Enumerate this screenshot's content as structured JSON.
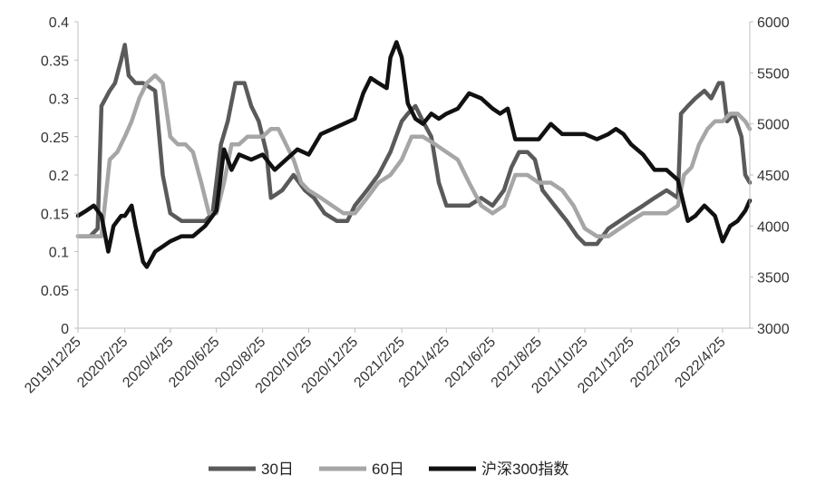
{
  "chart_data": {
    "type": "line",
    "y_left": {
      "ylim": [
        0,
        0.4
      ],
      "ticks": [
        "0",
        "0.05",
        "0.1",
        "0.15",
        "0.2",
        "0.25",
        "0.3",
        "0.35",
        "0.4"
      ]
    },
    "y_right": {
      "ylim": [
        3000,
        6000
      ],
      "ticks": [
        "3000",
        "3500",
        "4000",
        "4500",
        "5000",
        "5500",
        "6000"
      ]
    },
    "x_ticks": [
      "2019/12/25",
      "2020/2/25",
      "2020/4/25",
      "2020/6/25",
      "2020/8/25",
      "2020/10/25",
      "2020/12/25",
      "2021/2/25",
      "2021/4/25",
      "2021/6/25",
      "2021/8/25",
      "2021/10/25",
      "2021/12/25",
      "2022/2/25",
      "2022/4/25"
    ],
    "x_range": [
      "2019/12/25",
      "2022/5/31"
    ],
    "grid": false,
    "legend_position": "bottom",
    "series": [
      {
        "name": "30日",
        "axis": "left",
        "color": "#5a5a5a",
        "points": [
          [
            "2019/12/25",
            0.12
          ],
          [
            "2020/1/10",
            0.12
          ],
          [
            "2020/1/20",
            0.13
          ],
          [
            "2020/1/25",
            0.29
          ],
          [
            "2020/2/5",
            0.31
          ],
          [
            "2020/2/12",
            0.32
          ],
          [
            "2020/2/20",
            0.35
          ],
          [
            "2020/2/25",
            0.37
          ],
          [
            "2020/3/1",
            0.33
          ],
          [
            "2020/3/10",
            0.32
          ],
          [
            "2020/3/20",
            0.32
          ],
          [
            "2020/4/5",
            0.31
          ],
          [
            "2020/4/15",
            0.2
          ],
          [
            "2020/4/25",
            0.15
          ],
          [
            "2020/5/10",
            0.14
          ],
          [
            "2020/5/25",
            0.14
          ],
          [
            "2020/6/10",
            0.14
          ],
          [
            "2020/6/20",
            0.15
          ],
          [
            "2020/7/1",
            0.24
          ],
          [
            "2020/7/10",
            0.27
          ],
          [
            "2020/7/20",
            0.32
          ],
          [
            "2020/8/1",
            0.32
          ],
          [
            "2020/8/10",
            0.29
          ],
          [
            "2020/8/20",
            0.27
          ],
          [
            "2020/8/30",
            0.23
          ],
          [
            "2020/9/5",
            0.17
          ],
          [
            "2020/9/20",
            0.18
          ],
          [
            "2020/10/5",
            0.2
          ],
          [
            "2020/10/20",
            0.18
          ],
          [
            "2020/11/1",
            0.17
          ],
          [
            "2020/11/15",
            0.15
          ],
          [
            "2020/12/1",
            0.14
          ],
          [
            "2020/12/15",
            0.14
          ],
          [
            "2020/12/25",
            0.16
          ],
          [
            "2021/1/10",
            0.18
          ],
          [
            "2021/1/25",
            0.2
          ],
          [
            "2021/2/10",
            0.23
          ],
          [
            "2021/2/25",
            0.27
          ],
          [
            "2021/3/5",
            0.28
          ],
          [
            "2021/3/15",
            0.29
          ],
          [
            "2021/3/25",
            0.27
          ],
          [
            "2021/4/5",
            0.25
          ],
          [
            "2021/4/15",
            0.19
          ],
          [
            "2021/4/25",
            0.16
          ],
          [
            "2021/5/10",
            0.16
          ],
          [
            "2021/5/25",
            0.16
          ],
          [
            "2021/6/10",
            0.17
          ],
          [
            "2021/6/25",
            0.16
          ],
          [
            "2021/7/10",
            0.18
          ],
          [
            "2021/7/20",
            0.21
          ],
          [
            "2021/7/30",
            0.23
          ],
          [
            "2021/8/10",
            0.23
          ],
          [
            "2021/8/20",
            0.22
          ],
          [
            "2021/8/30",
            0.18
          ],
          [
            "2021/9/15",
            0.16
          ],
          [
            "2021/10/1",
            0.14
          ],
          [
            "2021/10/15",
            0.12
          ],
          [
            "2021/10/25",
            0.11
          ],
          [
            "2021/11/10",
            0.11
          ],
          [
            "2021/11/25",
            0.13
          ],
          [
            "2021/12/10",
            0.14
          ],
          [
            "2021/12/25",
            0.15
          ],
          [
            "2022/1/10",
            0.16
          ],
          [
            "2022/1/25",
            0.17
          ],
          [
            "2022/2/10",
            0.18
          ],
          [
            "2022/2/25",
            0.17
          ],
          [
            "2022/3/1",
            0.28
          ],
          [
            "2022/3/10",
            0.29
          ],
          [
            "2022/3/20",
            0.3
          ],
          [
            "2022/4/1",
            0.31
          ],
          [
            "2022/4/10",
            0.3
          ],
          [
            "2022/4/20",
            0.32
          ],
          [
            "2022/4/25",
            0.32
          ],
          [
            "2022/5/1",
            0.27
          ],
          [
            "2022/5/10",
            0.28
          ],
          [
            "2022/5/20",
            0.25
          ],
          [
            "2022/5/25",
            0.2
          ],
          [
            "2022/5/31",
            0.19
          ]
        ]
      },
      {
        "name": "60日",
        "axis": "left",
        "color": "#a6a6a6",
        "points": [
          [
            "2019/12/25",
            0.12
          ],
          [
            "2020/1/10",
            0.12
          ],
          [
            "2020/1/25",
            0.12
          ],
          [
            "2020/2/5",
            0.22
          ],
          [
            "2020/2/15",
            0.23
          ],
          [
            "2020/2/25",
            0.25
          ],
          [
            "2020/3/5",
            0.27
          ],
          [
            "2020/3/15",
            0.3
          ],
          [
            "2020/3/25",
            0.32
          ],
          [
            "2020/4/5",
            0.33
          ],
          [
            "2020/4/15",
            0.32
          ],
          [
            "2020/4/25",
            0.25
          ],
          [
            "2020/5/5",
            0.24
          ],
          [
            "2020/5/15",
            0.24
          ],
          [
            "2020/5/25",
            0.23
          ],
          [
            "2020/6/5",
            0.19
          ],
          [
            "2020/6/15",
            0.15
          ],
          [
            "2020/6/25",
            0.15
          ],
          [
            "2020/7/5",
            0.19
          ],
          [
            "2020/7/15",
            0.24
          ],
          [
            "2020/7/25",
            0.24
          ],
          [
            "2020/8/5",
            0.25
          ],
          [
            "2020/8/25",
            0.25
          ],
          [
            "2020/9/5",
            0.26
          ],
          [
            "2020/9/15",
            0.26
          ],
          [
            "2020/9/25",
            0.24
          ],
          [
            "2020/10/5",
            0.22
          ],
          [
            "2020/10/15",
            0.19
          ],
          [
            "2020/10/25",
            0.18
          ],
          [
            "2020/11/10",
            0.17
          ],
          [
            "2020/11/25",
            0.16
          ],
          [
            "2020/12/10",
            0.15
          ],
          [
            "2020/12/25",
            0.15
          ],
          [
            "2021/1/10",
            0.17
          ],
          [
            "2021/1/25",
            0.19
          ],
          [
            "2021/2/10",
            0.2
          ],
          [
            "2021/2/25",
            0.22
          ],
          [
            "2021/3/10",
            0.25
          ],
          [
            "2021/3/25",
            0.25
          ],
          [
            "2021/4/10",
            0.24
          ],
          [
            "2021/4/25",
            0.23
          ],
          [
            "2021/5/10",
            0.22
          ],
          [
            "2021/5/25",
            0.19
          ],
          [
            "2021/6/10",
            0.16
          ],
          [
            "2021/6/25",
            0.15
          ],
          [
            "2021/7/10",
            0.16
          ],
          [
            "2021/7/25",
            0.2
          ],
          [
            "2021/8/10",
            0.2
          ],
          [
            "2021/8/25",
            0.19
          ],
          [
            "2021/9/10",
            0.19
          ],
          [
            "2021/9/25",
            0.18
          ],
          [
            "2021/10/10",
            0.16
          ],
          [
            "2021/10/25",
            0.13
          ],
          [
            "2021/11/10",
            0.12
          ],
          [
            "2021/11/25",
            0.12
          ],
          [
            "2021/12/10",
            0.13
          ],
          [
            "2021/12/25",
            0.14
          ],
          [
            "2022/1/10",
            0.15
          ],
          [
            "2022/1/25",
            0.15
          ],
          [
            "2022/2/10",
            0.15
          ],
          [
            "2022/2/25",
            0.16
          ],
          [
            "2022/3/5",
            0.2
          ],
          [
            "2022/3/15",
            0.21
          ],
          [
            "2022/3/25",
            0.24
          ],
          [
            "2022/4/5",
            0.26
          ],
          [
            "2022/4/15",
            0.27
          ],
          [
            "2022/4/25",
            0.27
          ],
          [
            "2022/5/5",
            0.28
          ],
          [
            "2022/5/15",
            0.28
          ],
          [
            "2022/5/25",
            0.27
          ],
          [
            "2022/5/31",
            0.26
          ]
        ]
      },
      {
        "name": "沪深300指数",
        "axis": "right",
        "color": "#111111",
        "points": [
          [
            "2019/12/25",
            4100
          ],
          [
            "2020/1/5",
            4150
          ],
          [
            "2020/1/15",
            4200
          ],
          [
            "2020/1/25",
            4100
          ],
          [
            "2020/2/3",
            3750
          ],
          [
            "2020/2/10",
            4000
          ],
          [
            "2020/2/20",
            4100
          ],
          [
            "2020/2/25",
            4100
          ],
          [
            "2020/3/5",
            4200
          ],
          [
            "2020/3/10",
            4000
          ],
          [
            "2020/3/20",
            3650
          ],
          [
            "2020/3/25",
            3600
          ],
          [
            "2020/4/5",
            3750
          ],
          [
            "2020/4/15",
            3800
          ],
          [
            "2020/4/25",
            3850
          ],
          [
            "2020/5/10",
            3900
          ],
          [
            "2020/5/25",
            3900
          ],
          [
            "2020/6/10",
            4000
          ],
          [
            "2020/6/25",
            4150
          ],
          [
            "2020/7/5",
            4750
          ],
          [
            "2020/7/15",
            4550
          ],
          [
            "2020/7/25",
            4700
          ],
          [
            "2020/8/10",
            4650
          ],
          [
            "2020/8/25",
            4700
          ],
          [
            "2020/9/10",
            4550
          ],
          [
            "2020/9/25",
            4650
          ],
          [
            "2020/10/10",
            4750
          ],
          [
            "2020/10/25",
            4700
          ],
          [
            "2020/11/10",
            4900
          ],
          [
            "2020/11/25",
            4950
          ],
          [
            "2020/12/10",
            5000
          ],
          [
            "2020/12/25",
            5050
          ],
          [
            "2021/1/5",
            5300
          ],
          [
            "2021/1/15",
            5450
          ],
          [
            "2021/1/25",
            5400
          ],
          [
            "2021/2/5",
            5350
          ],
          [
            "2021/2/10",
            5650
          ],
          [
            "2021/2/18",
            5800
          ],
          [
            "2021/2/25",
            5650
          ],
          [
            "2021/3/5",
            5200
          ],
          [
            "2021/3/15",
            5050
          ],
          [
            "2021/3/25",
            5000
          ],
          [
            "2021/4/5",
            5100
          ],
          [
            "2021/4/15",
            5050
          ],
          [
            "2021/4/25",
            5100
          ],
          [
            "2021/5/10",
            5150
          ],
          [
            "2021/5/25",
            5300
          ],
          [
            "2021/6/10",
            5250
          ],
          [
            "2021/6/25",
            5150
          ],
          [
            "2021/7/5",
            5100
          ],
          [
            "2021/7/15",
            5150
          ],
          [
            "2021/7/25",
            4850
          ],
          [
            "2021/8/10",
            4850
          ],
          [
            "2021/8/25",
            4850
          ],
          [
            "2021/9/10",
            5000
          ],
          [
            "2021/9/25",
            4900
          ],
          [
            "2021/10/10",
            4900
          ],
          [
            "2021/10/25",
            4900
          ],
          [
            "2021/11/10",
            4850
          ],
          [
            "2021/11/25",
            4900
          ],
          [
            "2021/12/5",
            4950
          ],
          [
            "2021/12/15",
            4900
          ],
          [
            "2021/12/25",
            4800
          ],
          [
            "2022/1/10",
            4700
          ],
          [
            "2022/1/25",
            4550
          ],
          [
            "2022/2/10",
            4550
          ],
          [
            "2022/2/25",
            4450
          ],
          [
            "2022/3/5",
            4200
          ],
          [
            "2022/3/10",
            4050
          ],
          [
            "2022/3/20",
            4100
          ],
          [
            "2022/4/1",
            4200
          ],
          [
            "2022/4/15",
            4100
          ],
          [
            "2022/4/25",
            3850
          ],
          [
            "2022/5/5",
            4000
          ],
          [
            "2022/5/15",
            4050
          ],
          [
            "2022/5/25",
            4150
          ],
          [
            "2022/5/31",
            4250
          ]
        ]
      }
    ]
  }
}
